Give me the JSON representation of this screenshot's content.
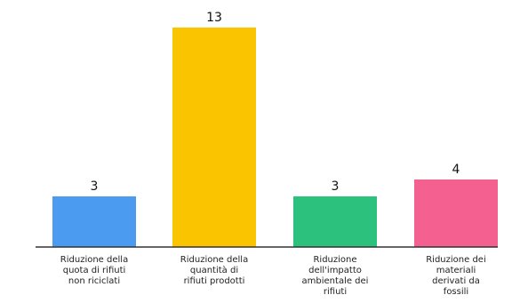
{
  "chart_data": {
    "type": "bar",
    "categories": [
      [
        "Riduzione della",
        "quota di rifiuti",
        "non riciclati"
      ],
      [
        "Riduzione della",
        "quantità di",
        "rifiuti prodotti"
      ],
      [
        "Riduzione",
        "dell'impatto",
        "ambientale dei",
        "rifiuti"
      ],
      [
        "Riduzione dei",
        "materiali",
        "derivati da",
        "fossili"
      ]
    ],
    "values": [
      3,
      13,
      3,
      4
    ],
    "value_labels": [
      "3",
      "13",
      "3",
      "4"
    ],
    "colors": [
      "#4b9cf0",
      "#fbc400",
      "#2cc27d",
      "#f4608f"
    ],
    "axis_color": "#333333",
    "ylim": [
      0,
      13
    ],
    "grid": false,
    "legend": "none"
  }
}
